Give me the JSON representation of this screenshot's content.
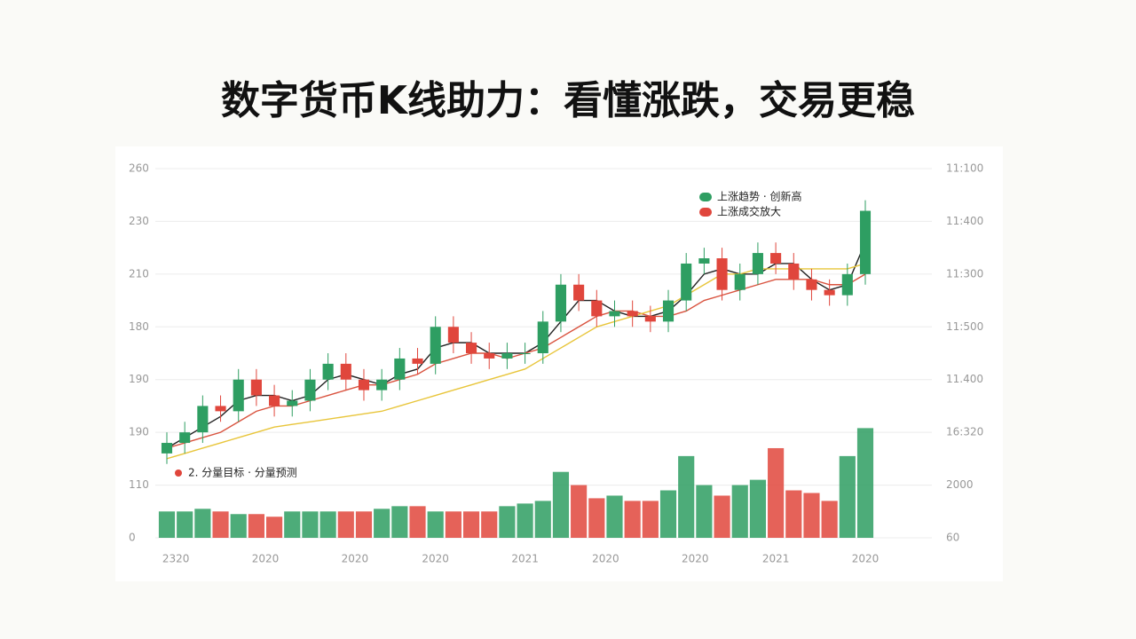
{
  "chart_data": {
    "type": "candlestick",
    "title": "数字货币K线助力：看懂涨跌，交易更稳",
    "up_color": "#2e9e62",
    "down_color": "#e0463c",
    "legend": [
      {
        "label": "上涨趋势 · 创新高",
        "color": "#2e9e62"
      },
      {
        "label": "上涨成交放大",
        "color": "#e0463c"
      }
    ],
    "annotation": {
      "label": "2. 分量目标 · 分量预测",
      "color": "#e0463c"
    },
    "xlim": [
      0,
      39
    ],
    "xticks": [
      {
        "value": 0.5,
        "label": "2320"
      },
      {
        "value": 5.5,
        "label": "2020"
      },
      {
        "value": 10.5,
        "label": "2020"
      },
      {
        "value": 15,
        "label": "2020"
      },
      {
        "value": 20,
        "label": "2021"
      },
      {
        "value": 24.5,
        "label": "2020"
      },
      {
        "value": 29.5,
        "label": "2020"
      },
      {
        "value": 34,
        "label": "2021"
      },
      {
        "value": 39,
        "label": "2020"
      }
    ],
    "ylim": [
      0,
      7
    ],
    "yticks": [
      {
        "value": 0,
        "label": "0"
      },
      {
        "value": 1,
        "label": "110"
      },
      {
        "value": 2,
        "label": "190"
      },
      {
        "value": 3,
        "label": "190"
      },
      {
        "value": 4,
        "label": "180"
      },
      {
        "value": 5,
        "label": "210"
      },
      {
        "value": 6,
        "label": "230"
      },
      {
        "value": 7,
        "label": "260"
      }
    ],
    "y2lim": [
      0,
      7
    ],
    "y2ticks": [
      {
        "value": 0,
        "label": "60"
      },
      {
        "value": 1,
        "label": "2000"
      },
      {
        "value": 2,
        "label": "16:320"
      },
      {
        "value": 3,
        "label": "11.400"
      },
      {
        "value": 4,
        "label": "11:500"
      },
      {
        "value": 5,
        "label": "11:300"
      },
      {
        "value": 6,
        "label": "11:400"
      },
      {
        "value": 7,
        "label": "11:100"
      }
    ],
    "grid": true,
    "open": [
      1.6,
      1.8,
      2.0,
      2.5,
      2.4,
      3.0,
      2.7,
      2.5,
      2.6,
      3.0,
      3.3,
      3.0,
      2.8,
      3.0,
      3.4,
      3.3,
      4.0,
      3.7,
      3.5,
      3.4,
      3.5,
      3.5,
      4.1,
      4.8,
      4.5,
      4.2,
      4.3,
      4.2,
      4.1,
      4.5,
      5.2,
      5.3,
      4.7,
      5.0,
      5.4,
      5.2,
      4.9,
      4.7,
      4.6,
      5.0
    ],
    "close": [
      1.8,
      2.0,
      2.5,
      2.4,
      3.0,
      2.7,
      2.5,
      2.6,
      3.0,
      3.3,
      3.0,
      2.8,
      3.0,
      3.4,
      3.3,
      4.0,
      3.7,
      3.5,
      3.4,
      3.5,
      3.5,
      4.1,
      4.8,
      4.5,
      4.2,
      4.3,
      4.2,
      4.1,
      4.5,
      5.2,
      5.3,
      4.7,
      5.0,
      5.4,
      5.2,
      4.9,
      4.7,
      4.6,
      5.0,
      6.2
    ],
    "high": [
      2.0,
      2.2,
      2.7,
      2.7,
      3.2,
      3.2,
      2.9,
      2.8,
      3.2,
      3.5,
      3.5,
      3.2,
      3.2,
      3.6,
      3.6,
      4.2,
      4.2,
      3.9,
      3.7,
      3.7,
      3.7,
      4.3,
      5.0,
      5.0,
      4.7,
      4.5,
      4.5,
      4.4,
      4.7,
      5.4,
      5.5,
      5.5,
      5.2,
      5.6,
      5.6,
      5.4,
      5.1,
      4.9,
      5.2,
      6.4
    ],
    "low": [
      1.4,
      1.6,
      1.8,
      2.2,
      2.2,
      2.5,
      2.3,
      2.3,
      2.4,
      2.8,
      2.8,
      2.6,
      2.6,
      2.8,
      3.1,
      3.1,
      3.5,
      3.3,
      3.2,
      3.2,
      3.3,
      3.3,
      3.9,
      4.3,
      4.0,
      4.0,
      4.0,
      3.9,
      3.9,
      4.3,
      5.0,
      4.5,
      4.5,
      4.8,
      5.0,
      4.7,
      4.5,
      4.4,
      4.4,
      4.8
    ],
    "volume": [
      0.5,
      0.5,
      0.55,
      0.5,
      0.45,
      0.45,
      0.4,
      0.5,
      0.5,
      0.5,
      0.5,
      0.5,
      0.55,
      0.6,
      0.6,
      0.5,
      0.5,
      0.5,
      0.5,
      0.6,
      0.65,
      0.7,
      1.25,
      1.0,
      0.75,
      0.8,
      0.7,
      0.7,
      0.9,
      1.55,
      1.0,
      0.8,
      1.0,
      1.1,
      1.7,
      0.9,
      0.85,
      0.7,
      1.55,
      2.08
    ],
    "series": [
      {
        "color": "#222222",
        "values": [
          1.7,
          1.9,
          2.1,
          2.3,
          2.6,
          2.7,
          2.7,
          2.6,
          2.7,
          3.0,
          3.1,
          3.0,
          2.9,
          3.1,
          3.2,
          3.6,
          3.7,
          3.7,
          3.5,
          3.5,
          3.5,
          3.7,
          4.1,
          4.5,
          4.5,
          4.3,
          4.2,
          4.2,
          4.3,
          4.6,
          5.0,
          5.1,
          5.0,
          5.0,
          5.2,
          5.2,
          4.9,
          4.7,
          4.8,
          5.6
        ]
      },
      {
        "color": "#d9533f",
        "values": [
          1.7,
          1.8,
          1.9,
          2.0,
          2.2,
          2.4,
          2.5,
          2.5,
          2.6,
          2.7,
          2.8,
          2.9,
          2.9,
          3.0,
          3.1,
          3.3,
          3.4,
          3.5,
          3.5,
          3.4,
          3.5,
          3.6,
          3.8,
          4.0,
          4.2,
          4.3,
          4.3,
          4.2,
          4.2,
          4.3,
          4.5,
          4.6,
          4.7,
          4.8,
          4.9,
          4.9,
          4.9,
          4.8,
          4.8,
          5.0
        ]
      },
      {
        "color": "#e8c53a",
        "values": [
          1.5,
          1.6,
          1.7,
          1.8,
          1.9,
          2.0,
          2.1,
          2.15,
          2.2,
          2.25,
          2.3,
          2.35,
          2.4,
          2.5,
          2.6,
          2.7,
          2.8,
          2.9,
          3.0,
          3.1,
          3.2,
          3.4,
          3.6,
          3.8,
          4.0,
          4.1,
          4.2,
          4.3,
          4.4,
          4.6,
          4.8,
          5.0,
          5.0,
          5.1,
          5.1,
          5.1,
          5.1,
          5.1,
          5.1,
          5.2
        ]
      }
    ]
  }
}
